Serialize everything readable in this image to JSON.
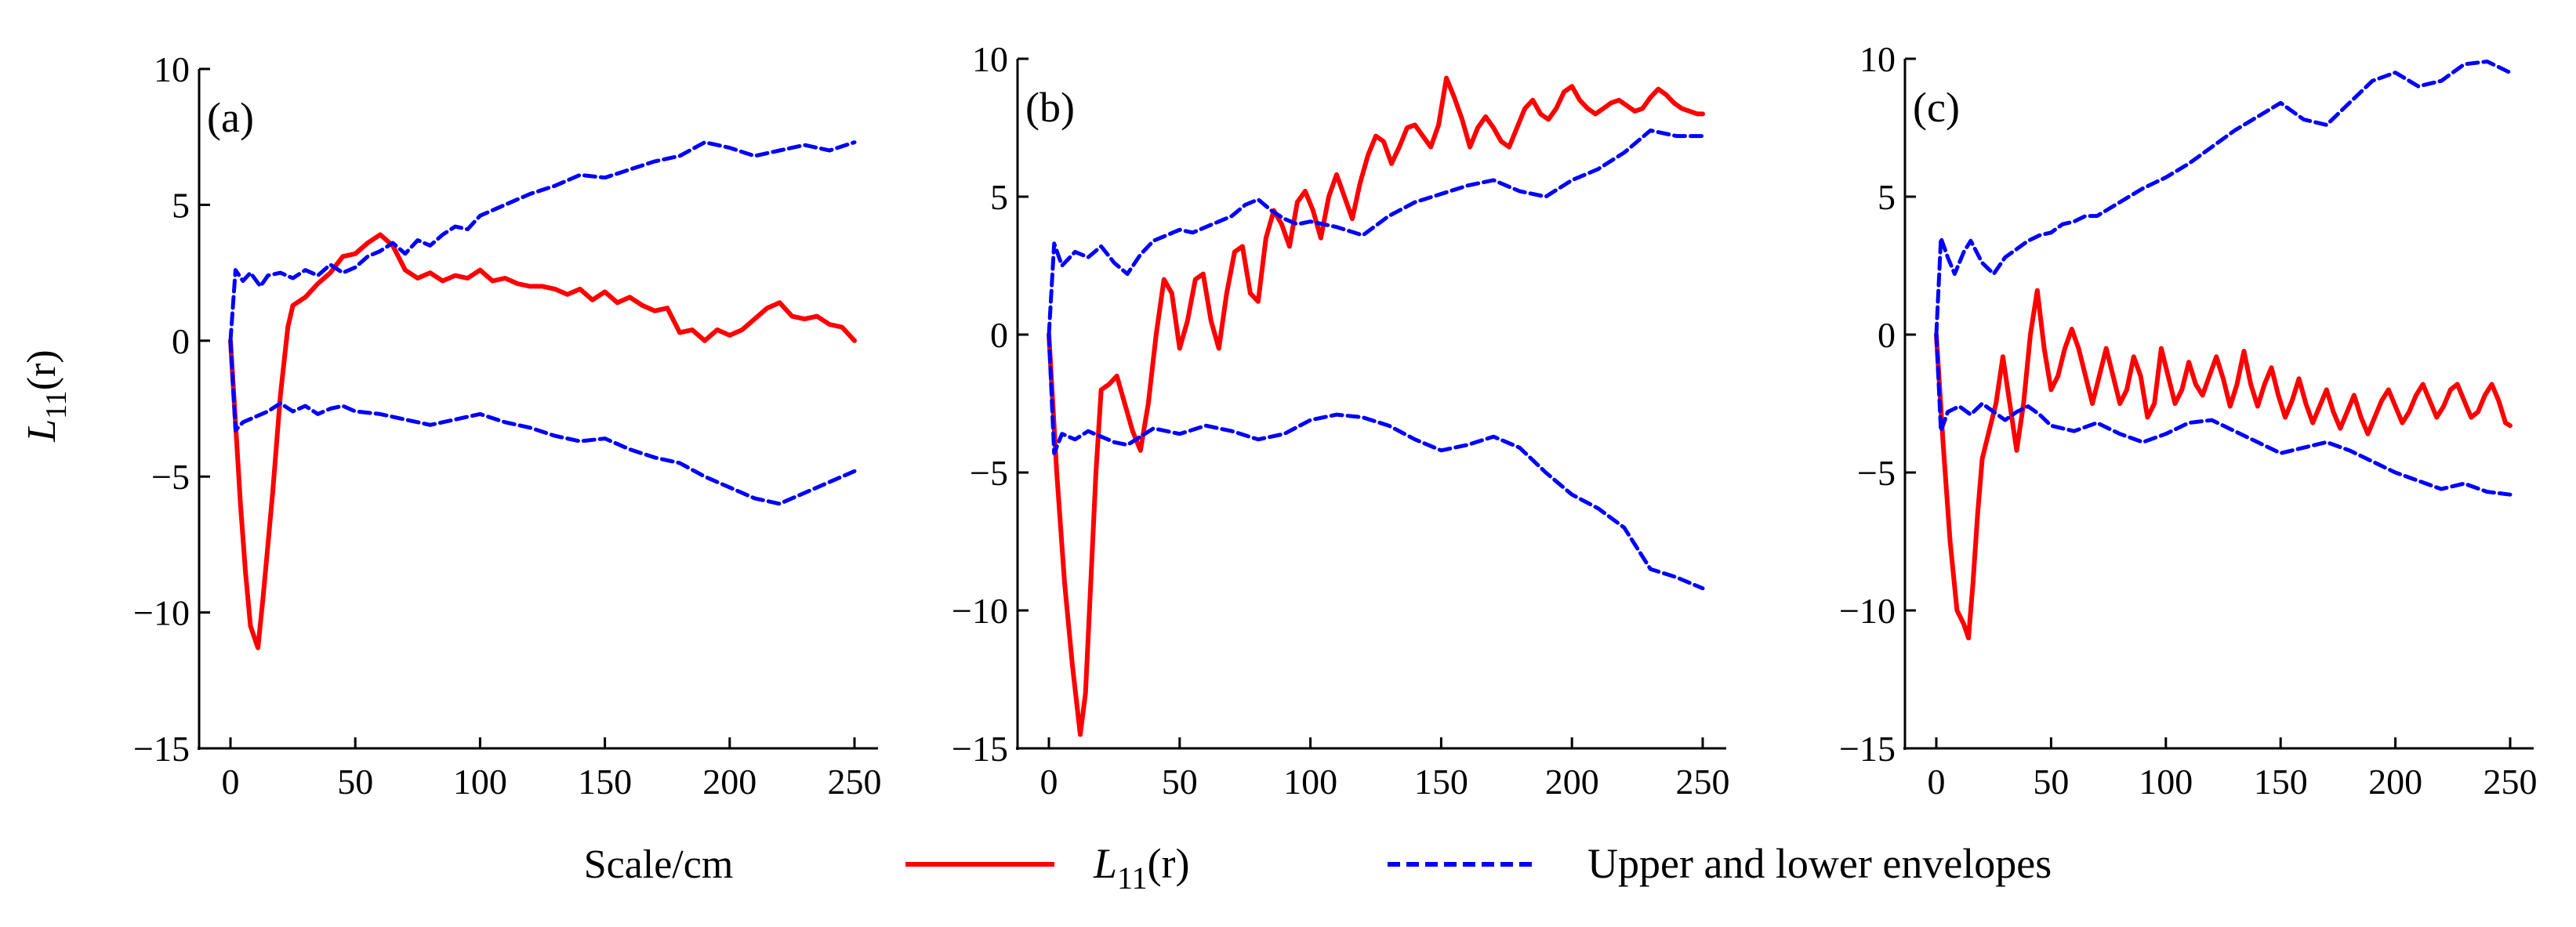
{
  "figure": {
    "ylabel_main": "L",
    "ylabel_sub": "11",
    "ylabel_tail": "(r)",
    "xlabel": "Scale/cm"
  },
  "legend": {
    "items": [
      {
        "label_main": "L",
        "label_sub": "11",
        "label_tail": "(r)",
        "series": "L11"
      },
      {
        "label": "Upper and lower envelopes",
        "series": "envelope"
      }
    ]
  },
  "colors": {
    "L11": "#ff0000",
    "envelope": "#0000ff"
  },
  "chart_data": [
    {
      "type": "line",
      "panel": "(a)",
      "xlim": [
        0,
        250
      ],
      "ylim": [
        -15,
        10
      ],
      "xticks": [
        "0",
        "50",
        "100",
        "150",
        "200",
        "250"
      ],
      "yticks": [
        "10",
        "5",
        "0",
        "−5",
        "−10",
        "−15"
      ],
      "series": [
        {
          "name": "L11(r)",
          "x": [
            0,
            2,
            4,
            6,
            8,
            11,
            13,
            15,
            17,
            20,
            23,
            25,
            30,
            35,
            40,
            45,
            50,
            55,
            60,
            65,
            70,
            75,
            80,
            85,
            90,
            95,
            100,
            105,
            110,
            115,
            120,
            125,
            130,
            135,
            140,
            145,
            150,
            155,
            160,
            165,
            170,
            175,
            180,
            185,
            190,
            195,
            200,
            205,
            210,
            215,
            220,
            225,
            230,
            235,
            240,
            245,
            250
          ],
          "y": [
            0,
            -3,
            -6,
            -8.5,
            -10.5,
            -11.3,
            -9.5,
            -7.5,
            -5.5,
            -2,
            0.5,
            1.3,
            1.6,
            2.1,
            2.5,
            3.1,
            3.2,
            3.6,
            3.9,
            3.5,
            2.6,
            2.3,
            2.5,
            2.2,
            2.4,
            2.3,
            2.6,
            2.2,
            2.3,
            2.1,
            2.0,
            2.0,
            1.9,
            1.7,
            1.9,
            1.5,
            1.8,
            1.4,
            1.6,
            1.3,
            1.1,
            1.2,
            0.3,
            0.4,
            0.0,
            0.4,
            0.2,
            0.4,
            0.8,
            1.2,
            1.4,
            0.9,
            0.8,
            0.9,
            0.6,
            0.5,
            0.0
          ]
        },
        {
          "name": "Upper envelope",
          "x": [
            0,
            2,
            5,
            8,
            12,
            15,
            20,
            25,
            30,
            35,
            40,
            45,
            50,
            55,
            60,
            65,
            70,
            75,
            80,
            85,
            90,
            95,
            100,
            110,
            120,
            130,
            140,
            150,
            160,
            170,
            180,
            190,
            200,
            210,
            220,
            230,
            240,
            250
          ],
          "y": [
            0,
            2.6,
            2.2,
            2.5,
            2.0,
            2.4,
            2.5,
            2.3,
            2.6,
            2.4,
            2.8,
            2.5,
            2.7,
            3.1,
            3.3,
            3.6,
            3.2,
            3.7,
            3.5,
            3.9,
            4.2,
            4.1,
            4.6,
            5.0,
            5.4,
            5.7,
            6.1,
            6.0,
            6.3,
            6.6,
            6.8,
            7.3,
            7.1,
            6.8,
            7.0,
            7.2,
            7.0,
            7.3
          ]
        },
        {
          "name": "Lower envelope",
          "x": [
            0,
            2,
            5,
            10,
            15,
            20,
            25,
            30,
            35,
            40,
            45,
            50,
            60,
            70,
            80,
            90,
            100,
            110,
            120,
            130,
            140,
            150,
            160,
            170,
            180,
            190,
            200,
            210,
            220,
            230,
            240,
            250
          ],
          "y": [
            0,
            -3.3,
            -3.0,
            -2.8,
            -2.6,
            -2.3,
            -2.6,
            -2.4,
            -2.7,
            -2.5,
            -2.4,
            -2.6,
            -2.7,
            -2.9,
            -3.1,
            -2.9,
            -2.7,
            -3.0,
            -3.2,
            -3.5,
            -3.7,
            -3.6,
            -4.0,
            -4.3,
            -4.5,
            -5.0,
            -5.4,
            -5.8,
            -6.0,
            -5.6,
            -5.2,
            -4.8
          ]
        }
      ]
    },
    {
      "type": "line",
      "panel": "(b)",
      "xlim": [
        0,
        250
      ],
      "ylim": [
        -15,
        10
      ],
      "xticks": [
        "0",
        "50",
        "100",
        "150",
        "200",
        "250"
      ],
      "yticks": [
        "10",
        "5",
        "0",
        "−5",
        "−10",
        "−15"
      ],
      "series": [
        {
          "name": "L11(r)",
          "x": [
            0,
            3,
            6,
            9,
            12,
            14,
            16,
            18,
            20,
            23,
            26,
            29,
            32,
            35,
            38,
            41,
            44,
            47,
            50,
            53,
            56,
            59,
            62,
            65,
            68,
            71,
            74,
            77,
            80,
            83,
            86,
            89,
            92,
            95,
            98,
            101,
            104,
            107,
            110,
            113,
            116,
            119,
            122,
            125,
            128,
            131,
            134,
            137,
            140,
            143,
            146,
            149,
            152,
            155,
            158,
            161,
            164,
            167,
            170,
            173,
            176,
            179,
            182,
            185,
            188,
            191,
            194,
            197,
            200,
            203,
            206,
            209,
            212,
            215,
            218,
            221,
            224,
            227,
            230,
            233,
            236,
            239,
            242,
            245,
            248,
            250
          ],
          "y": [
            0,
            -5,
            -9,
            -12,
            -14.5,
            -13,
            -9,
            -5,
            -2,
            -1.8,
            -1.5,
            -2.5,
            -3.5,
            -4.2,
            -2.5,
            0,
            2.0,
            1.5,
            -0.5,
            0.5,
            2.0,
            2.2,
            0.5,
            -0.5,
            1.5,
            3.0,
            3.2,
            1.5,
            1.2,
            3.5,
            4.5,
            4.0,
            3.2,
            4.8,
            5.2,
            4.5,
            3.5,
            5.0,
            5.8,
            5.0,
            4.2,
            5.5,
            6.5,
            7.2,
            7.0,
            6.2,
            6.8,
            7.5,
            7.6,
            7.2,
            6.8,
            7.6,
            9.3,
            8.6,
            7.8,
            6.8,
            7.5,
            7.9,
            7.5,
            7.0,
            6.8,
            7.5,
            8.2,
            8.5,
            8.0,
            7.8,
            8.2,
            8.8,
            9.0,
            8.5,
            8.2,
            8.0,
            8.2,
            8.4,
            8.5,
            8.3,
            8.1,
            8.2,
            8.6,
            8.9,
            8.7,
            8.4,
            8.2,
            8.1,
            8.0,
            8.0
          ]
        },
        {
          "name": "Upper envelope",
          "x": [
            0,
            2,
            5,
            10,
            15,
            20,
            25,
            30,
            35,
            40,
            45,
            50,
            55,
            60,
            65,
            70,
            75,
            80,
            85,
            90,
            95,
            100,
            110,
            120,
            130,
            140,
            150,
            160,
            170,
            180,
            190,
            200,
            210,
            220,
            230,
            240,
            250
          ],
          "y": [
            0,
            3.3,
            2.5,
            3.0,
            2.8,
            3.2,
            2.6,
            2.2,
            2.9,
            3.4,
            3.6,
            3.8,
            3.7,
            3.9,
            4.1,
            4.3,
            4.7,
            4.9,
            4.5,
            4.2,
            4.0,
            4.1,
            3.9,
            3.6,
            4.3,
            4.8,
            5.1,
            5.4,
            5.6,
            5.2,
            5.0,
            5.6,
            6.0,
            6.6,
            7.4,
            7.2,
            7.2
          ]
        },
        {
          "name": "Lower envelope",
          "x": [
            0,
            2,
            5,
            10,
            15,
            20,
            25,
            30,
            40,
            50,
            60,
            70,
            80,
            90,
            100,
            110,
            120,
            130,
            140,
            150,
            160,
            170,
            180,
            190,
            200,
            210,
            220,
            230,
            240,
            250
          ],
          "y": [
            0,
            -4.3,
            -3.6,
            -3.8,
            -3.5,
            -3.7,
            -3.9,
            -4.0,
            -3.4,
            -3.6,
            -3.3,
            -3.5,
            -3.8,
            -3.6,
            -3.1,
            -2.9,
            -3.0,
            -3.3,
            -3.8,
            -4.2,
            -4.0,
            -3.7,
            -4.1,
            -5.0,
            -5.8,
            -6.3,
            -7.0,
            -8.5,
            -8.8,
            -9.2
          ]
        }
      ]
    },
    {
      "type": "line",
      "panel": "(c)",
      "xlim": [
        0,
        250
      ],
      "ylim": [
        -15,
        10
      ],
      "xticks": [
        "0",
        "50",
        "100",
        "150",
        "200",
        "250"
      ],
      "yticks": [
        "10",
        "5",
        "0",
        "−5",
        "−10",
        "−15"
      ],
      "series": [
        {
          "name": "L11(r)",
          "x": [
            0,
            3,
            6,
            9,
            12,
            14,
            16,
            18,
            20,
            23,
            26,
            29,
            32,
            35,
            38,
            41,
            44,
            47,
            50,
            53,
            56,
            59,
            62,
            65,
            68,
            71,
            74,
            77,
            80,
            83,
            86,
            89,
            92,
            95,
            98,
            101,
            104,
            107,
            110,
            113,
            116,
            119,
            122,
            125,
            128,
            131,
            134,
            137,
            140,
            143,
            146,
            149,
            152,
            155,
            158,
            161,
            164,
            167,
            170,
            173,
            176,
            179,
            182,
            185,
            188,
            191,
            194,
            197,
            200,
            203,
            206,
            209,
            212,
            215,
            218,
            221,
            224,
            227,
            230,
            233,
            236,
            239,
            242,
            245,
            248,
            250
          ],
          "y": [
            0,
            -4,
            -7.5,
            -10,
            -10.5,
            -11,
            -9,
            -6.5,
            -4.5,
            -3.5,
            -2.5,
            -0.8,
            -2.5,
            -4.2,
            -2.5,
            0,
            1.6,
            -0.5,
            -2.0,
            -1.5,
            -0.5,
            0.2,
            -0.5,
            -1.5,
            -2.5,
            -1.5,
            -0.5,
            -1.5,
            -2.5,
            -2.0,
            -0.8,
            -1.5,
            -3.0,
            -2.5,
            -0.5,
            -1.5,
            -2.5,
            -2.0,
            -1.0,
            -1.8,
            -2.2,
            -1.5,
            -0.8,
            -1.6,
            -2.6,
            -1.8,
            -0.6,
            -1.8,
            -2.6,
            -1.8,
            -1.2,
            -2.2,
            -3.0,
            -2.4,
            -1.6,
            -2.5,
            -3.2,
            -2.6,
            -2.0,
            -2.8,
            -3.4,
            -2.8,
            -2.2,
            -3.0,
            -3.6,
            -3.0,
            -2.4,
            -2.0,
            -2.6,
            -3.2,
            -2.8,
            -2.2,
            -1.8,
            -2.4,
            -3.0,
            -2.6,
            -2.0,
            -1.8,
            -2.4,
            -3.0,
            -2.8,
            -2.2,
            -1.8,
            -2.4,
            -3.2,
            -3.3
          ]
        },
        {
          "name": "Upper envelope",
          "x": [
            0,
            2,
            5,
            8,
            12,
            15,
            20,
            25,
            30,
            35,
            40,
            45,
            50,
            55,
            60,
            65,
            70,
            80,
            90,
            100,
            110,
            120,
            130,
            140,
            150,
            160,
            170,
            180,
            190,
            200,
            210,
            220,
            230,
            240,
            250
          ],
          "y": [
            0,
            3.5,
            2.8,
            2.2,
            3.0,
            3.4,
            2.6,
            2.2,
            2.8,
            3.1,
            3.4,
            3.6,
            3.7,
            4.0,
            4.1,
            4.3,
            4.3,
            4.8,
            5.3,
            5.7,
            6.2,
            6.8,
            7.4,
            7.9,
            8.4,
            7.8,
            7.6,
            8.4,
            9.2,
            9.5,
            9.0,
            9.2,
            9.8,
            9.9,
            9.5
          ]
        },
        {
          "name": "Lower envelope",
          "x": [
            0,
            2,
            5,
            10,
            15,
            20,
            25,
            30,
            35,
            40,
            45,
            50,
            60,
            70,
            80,
            90,
            100,
            110,
            120,
            130,
            140,
            150,
            160,
            170,
            180,
            190,
            200,
            210,
            220,
            230,
            240,
            250
          ],
          "y": [
            0,
            -3.5,
            -2.8,
            -2.6,
            -2.9,
            -2.5,
            -2.8,
            -3.1,
            -2.8,
            -2.6,
            -2.9,
            -3.3,
            -3.5,
            -3.2,
            -3.6,
            -3.9,
            -3.6,
            -3.2,
            -3.1,
            -3.5,
            -3.9,
            -4.3,
            -4.1,
            -3.9,
            -4.2,
            -4.6,
            -5.0,
            -5.3,
            -5.6,
            -5.4,
            -5.7,
            -5.8
          ]
        }
      ]
    }
  ]
}
